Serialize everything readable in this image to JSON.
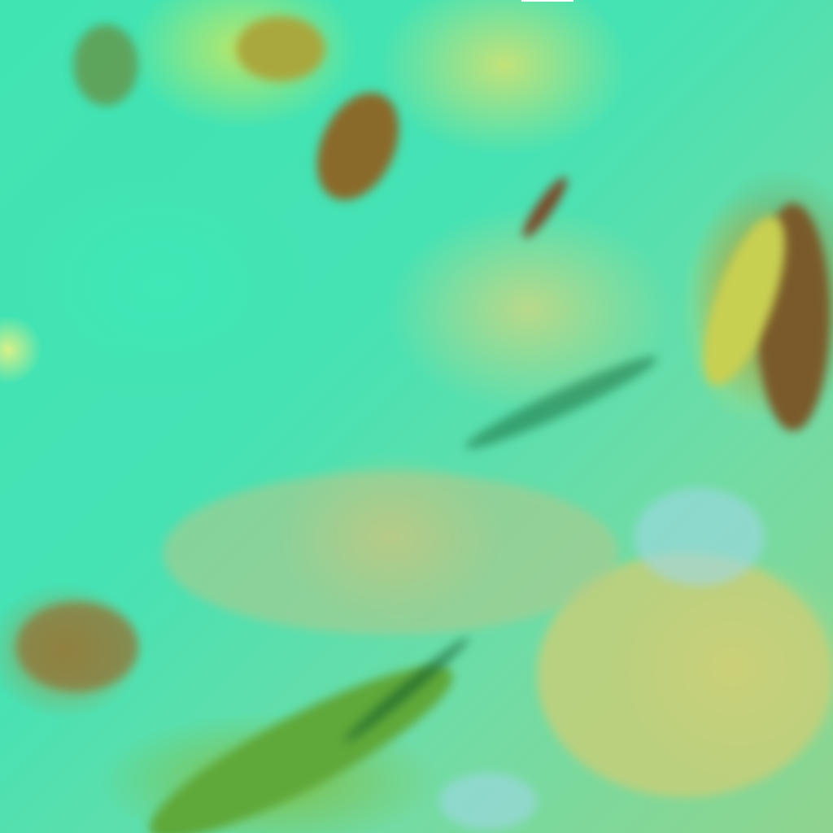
{
  "image": {
    "palette": {
      "clear": "#3fe4b2",
      "low_cloud": "#c6dc7a",
      "thick_cloud": "#8a7a34",
      "shadow": "#0f6a3a",
      "ice": "#9fd8e8"
    }
  }
}
